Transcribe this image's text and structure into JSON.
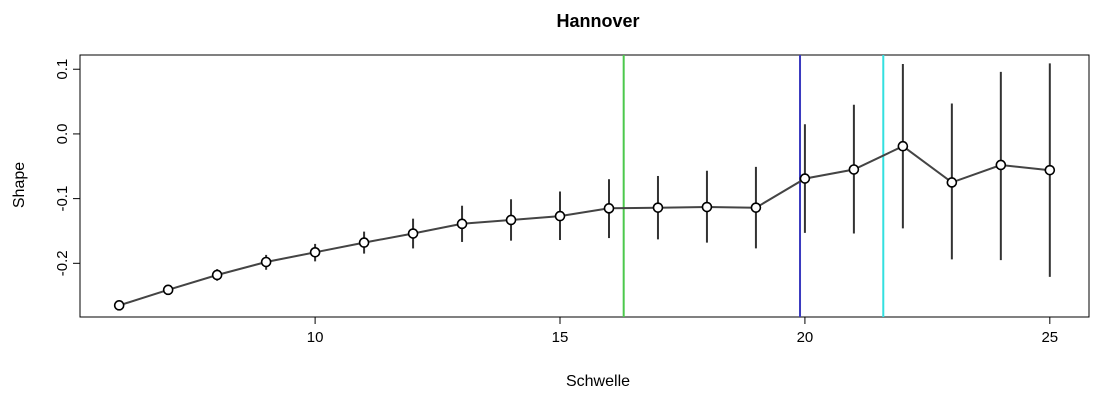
{
  "chart_data": {
    "type": "scatter",
    "title": "Hannover",
    "xlabel": "Schwelle",
    "ylabel": "Shape",
    "xlim": [
      5.2,
      25.8
    ],
    "ylim": [
      -0.283,
      0.122
    ],
    "xticks": [
      10,
      15,
      20,
      25
    ],
    "yticks": [
      -0.2,
      -0.1,
      0.0,
      0.1
    ],
    "xtick_labels": [
      "10",
      "15",
      "20",
      "25"
    ],
    "ytick_labels": [
      "-0.2",
      "-0.1",
      "0.0",
      "0.1"
    ],
    "series": [
      {
        "x": [
          6,
          7,
          8,
          9,
          10,
          11,
          12,
          13,
          14,
          15,
          16,
          17,
          18,
          19,
          20,
          21,
          22,
          23,
          24,
          25
        ],
        "values": [
          -0.265,
          -0.241,
          -0.218,
          -0.198,
          -0.183,
          -0.168,
          -0.154,
          -0.139,
          -0.133,
          -0.127,
          -0.115,
          -0.114,
          -0.113,
          -0.114,
          -0.069,
          -0.055,
          -0.019,
          -0.075,
          -0.048,
          -0.056
        ],
        "lower": [
          -0.267,
          -0.247,
          -0.227,
          -0.21,
          -0.197,
          -0.185,
          -0.177,
          -0.167,
          -0.165,
          -0.164,
          -0.161,
          -0.163,
          -0.168,
          -0.177,
          -0.153,
          -0.154,
          -0.146,
          -0.194,
          -0.195,
          -0.221
        ],
        "upper": [
          -0.263,
          -0.236,
          -0.209,
          -0.187,
          -0.17,
          -0.151,
          -0.131,
          -0.111,
          -0.101,
          -0.089,
          -0.07,
          -0.065,
          -0.057,
          -0.051,
          0.015,
          0.045,
          0.108,
          0.047,
          0.096,
          0.109
        ]
      }
    ],
    "vlines": [
      {
        "x": 16.3,
        "color": "#4cc84c"
      },
      {
        "x": 19.9,
        "color": "#3a3abf"
      },
      {
        "x": 21.6,
        "color": "#33e0e0"
      }
    ],
    "grid": false,
    "legend": "none"
  }
}
